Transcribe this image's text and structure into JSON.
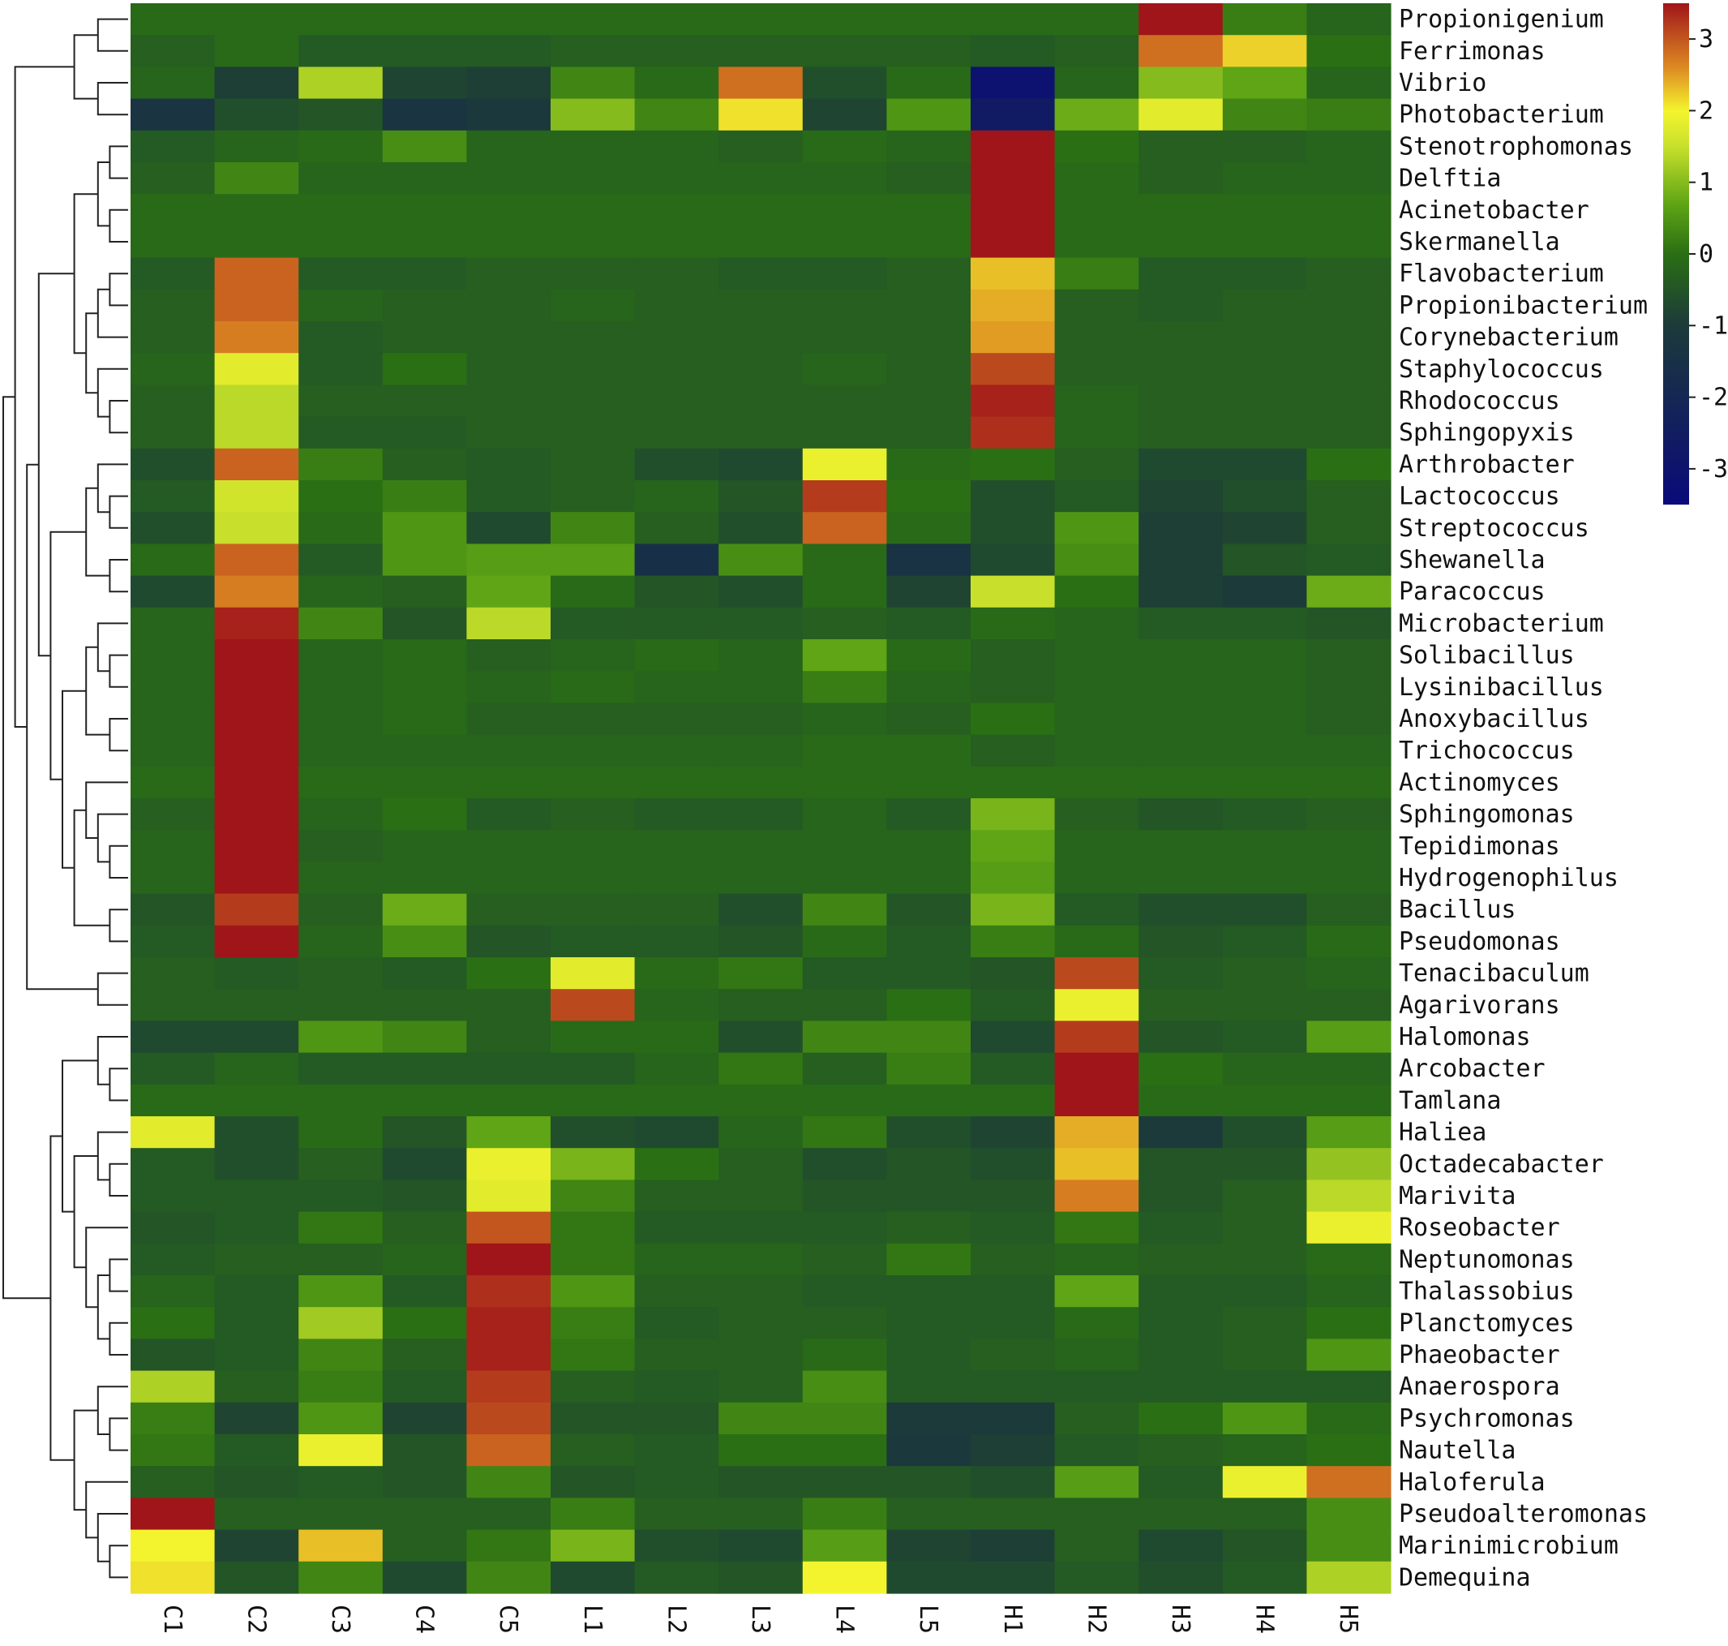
{
  "chart_data": {
    "type": "heatmap",
    "title": "",
    "xlabel": "",
    "ylabel": "",
    "columns": [
      "C1",
      "C2",
      "C3",
      "C4",
      "C5",
      "L1",
      "L2",
      "L3",
      "L4",
      "L5",
      "H1",
      "H2",
      "H3",
      "H4",
      "H5"
    ],
    "rows": [
      "Propionigenium",
      "Ferrimonas",
      "Vibrio",
      "Photobacterium",
      "Stenotrophomonas",
      "Delftia",
      "Acinetobacter",
      "Skermanella",
      "Flavobacterium",
      "Propionibacterium",
      "Corynebacterium",
      "Staphylococcus",
      "Rhodococcus",
      "Sphingopyxis",
      "Arthrobacter",
      "Lactococcus",
      "Streptococcus",
      "Shewanella",
      "Paracoccus",
      "Microbacterium",
      "Solibacillus",
      "Lysinibacillus",
      "Anoxybacillus",
      "Trichococcus",
      "Actinomyces",
      "Sphingomonas",
      "Tepidimonas",
      "Hydrogenophilus",
      "Bacillus",
      "Pseudomonas",
      "Tenacibaculum",
      "Agarivorans",
      "Halomonas",
      "Arcobacter",
      "Tamlana",
      "Haliea",
      "Octadecabacter",
      "Marivita",
      "Roseobacter",
      "Neptunomonas",
      "Thalassobius",
      "Planctomyces",
      "Phaeobacter",
      "Anaerospora",
      "Psychromonas",
      "Nautella",
      "Haloferula",
      "Pseudoalteromonas",
      "Marinimicrobium",
      "Demequina"
    ],
    "values": [
      [
        -0.1,
        -0.1,
        -0.1,
        -0.1,
        -0.1,
        -0.1,
        -0.1,
        -0.1,
        -0.1,
        -0.1,
        -0.1,
        -0.1,
        3.5,
        0.2,
        -0.2
      ],
      [
        -0.3,
        -0.1,
        -0.4,
        -0.4,
        -0.4,
        -0.3,
        -0.3,
        -0.3,
        -0.3,
        -0.3,
        -0.4,
        -0.3,
        2.8,
        2.2,
        0.0
      ],
      [
        -0.2,
        -0.9,
        1.3,
        -0.8,
        -0.9,
        0.3,
        -0.1,
        2.8,
        -0.6,
        -0.1,
        -3.1,
        -0.2,
        1.0,
        0.7,
        -0.2
      ],
      [
        -1.3,
        -0.6,
        -0.5,
        -1.3,
        -1.1,
        1.0,
        0.3,
        2.1,
        -0.8,
        0.5,
        -2.6,
        0.8,
        1.8,
        0.3,
        0.2
      ],
      [
        -0.4,
        -0.2,
        -0.1,
        0.4,
        -0.2,
        -0.2,
        -0.2,
        -0.3,
        -0.1,
        -0.2,
        3.5,
        0.0,
        -0.3,
        -0.3,
        -0.2
      ],
      [
        -0.3,
        0.3,
        -0.2,
        -0.2,
        -0.2,
        -0.2,
        -0.2,
        -0.2,
        -0.2,
        -0.3,
        3.5,
        -0.1,
        -0.3,
        -0.2,
        -0.2
      ],
      [
        -0.1,
        -0.1,
        -0.1,
        -0.1,
        -0.1,
        -0.1,
        -0.1,
        -0.1,
        -0.1,
        -0.1,
        3.5,
        -0.1,
        -0.1,
        -0.1,
        -0.1
      ],
      [
        -0.1,
        -0.1,
        -0.1,
        -0.1,
        -0.1,
        -0.1,
        -0.1,
        -0.1,
        -0.1,
        -0.1,
        3.5,
        -0.1,
        -0.1,
        -0.1,
        -0.1
      ],
      [
        -0.4,
        2.9,
        -0.4,
        -0.4,
        -0.3,
        -0.3,
        -0.3,
        -0.4,
        -0.4,
        -0.3,
        2.3,
        0.2,
        -0.4,
        -0.4,
        -0.3
      ],
      [
        -0.3,
        2.9,
        -0.2,
        -0.3,
        -0.3,
        -0.2,
        -0.3,
        -0.3,
        -0.3,
        -0.3,
        2.4,
        -0.3,
        -0.4,
        -0.3,
        -0.3
      ],
      [
        -0.3,
        2.7,
        -0.4,
        -0.3,
        -0.3,
        -0.3,
        -0.3,
        -0.3,
        -0.3,
        -0.3,
        2.5,
        -0.3,
        -0.3,
        -0.3,
        -0.3
      ],
      [
        -0.2,
        1.8,
        -0.4,
        0.0,
        -0.3,
        -0.3,
        -0.3,
        -0.3,
        -0.2,
        -0.3,
        3.1,
        -0.3,
        -0.3,
        -0.3,
        -0.3
      ],
      [
        -0.3,
        1.4,
        -0.3,
        -0.3,
        -0.3,
        -0.3,
        -0.3,
        -0.3,
        -0.3,
        -0.3,
        3.4,
        -0.2,
        -0.3,
        -0.3,
        -0.3
      ],
      [
        -0.3,
        1.4,
        -0.4,
        -0.4,
        -0.3,
        -0.3,
        -0.3,
        -0.3,
        -0.3,
        -0.3,
        3.3,
        -0.2,
        -0.3,
        -0.3,
        -0.3
      ],
      [
        -0.6,
        2.9,
        0.2,
        -0.3,
        -0.4,
        -0.3,
        -0.6,
        -0.7,
        1.9,
        -0.1,
        0.0,
        -0.3,
        -0.7,
        -0.7,
        0.0
      ],
      [
        -0.4,
        1.6,
        0.0,
        0.2,
        -0.4,
        -0.3,
        -0.2,
        -0.5,
        3.2,
        0.0,
        -0.6,
        -0.4,
        -0.8,
        -0.6,
        -0.3
      ],
      [
        -0.6,
        1.5,
        -0.1,
        0.5,
        -0.7,
        0.3,
        -0.3,
        -0.6,
        2.9,
        -0.1,
        -0.6,
        0.5,
        -0.9,
        -0.8,
        -0.3
      ],
      [
        -0.1,
        2.9,
        -0.4,
        0.5,
        0.6,
        0.6,
        -1.5,
        0.4,
        -0.1,
        -1.4,
        -0.7,
        0.4,
        -0.9,
        -0.5,
        -0.4
      ],
      [
        -0.7,
        2.7,
        -0.2,
        -0.3,
        0.7,
        -0.1,
        -0.5,
        -0.6,
        -0.1,
        -0.8,
        1.5,
        0.0,
        -0.9,
        -1.0,
        0.8
      ],
      [
        -0.2,
        3.4,
        0.3,
        -0.5,
        1.4,
        -0.4,
        -0.4,
        -0.4,
        -0.3,
        -0.4,
        -0.1,
        -0.2,
        -0.4,
        -0.4,
        -0.5
      ],
      [
        -0.2,
        3.5,
        -0.2,
        -0.1,
        -0.3,
        -0.2,
        -0.1,
        -0.2,
        0.7,
        -0.1,
        -0.3,
        -0.2,
        -0.2,
        -0.2,
        -0.3
      ],
      [
        -0.2,
        3.5,
        -0.2,
        -0.1,
        -0.2,
        -0.1,
        -0.2,
        -0.2,
        0.2,
        -0.2,
        -0.3,
        -0.2,
        -0.2,
        -0.2,
        -0.3
      ],
      [
        -0.2,
        3.5,
        -0.2,
        -0.1,
        -0.3,
        -0.3,
        -0.3,
        -0.3,
        -0.2,
        -0.3,
        0.0,
        -0.2,
        -0.2,
        -0.2,
        -0.3
      ],
      [
        -0.2,
        3.5,
        -0.2,
        -0.2,
        -0.2,
        -0.2,
        -0.2,
        -0.2,
        -0.1,
        -0.1,
        -0.3,
        -0.2,
        -0.2,
        -0.2,
        -0.2
      ],
      [
        -0.1,
        3.5,
        -0.1,
        -0.1,
        -0.1,
        -0.1,
        -0.1,
        -0.1,
        -0.1,
        -0.1,
        -0.1,
        -0.1,
        -0.1,
        -0.1,
        -0.1
      ],
      [
        -0.3,
        3.5,
        -0.2,
        0.0,
        -0.4,
        -0.3,
        -0.4,
        -0.4,
        -0.2,
        -0.4,
        0.9,
        -0.3,
        -0.5,
        -0.4,
        -0.3
      ],
      [
        -0.2,
        3.5,
        -0.3,
        -0.2,
        -0.2,
        -0.2,
        -0.2,
        -0.2,
        -0.2,
        -0.2,
        0.7,
        -0.2,
        -0.2,
        -0.2,
        -0.2
      ],
      [
        -0.2,
        3.5,
        -0.2,
        -0.2,
        -0.2,
        -0.2,
        -0.2,
        -0.2,
        -0.2,
        -0.2,
        0.6,
        -0.2,
        -0.2,
        -0.2,
        -0.2
      ],
      [
        -0.5,
        3.2,
        -0.3,
        0.8,
        -0.3,
        -0.3,
        -0.3,
        -0.6,
        0.3,
        -0.5,
        0.9,
        -0.4,
        -0.6,
        -0.6,
        -0.3
      ],
      [
        -0.4,
        3.5,
        -0.2,
        0.4,
        -0.5,
        -0.4,
        -0.4,
        -0.5,
        -0.1,
        -0.4,
        0.2,
        -0.1,
        -0.5,
        -0.4,
        -0.1
      ],
      [
        -0.3,
        -0.4,
        -0.3,
        -0.4,
        0.0,
        1.8,
        -0.1,
        0.1,
        -0.4,
        -0.4,
        -0.5,
        3.1,
        -0.4,
        -0.3,
        -0.2
      ],
      [
        -0.3,
        -0.3,
        -0.3,
        -0.3,
        -0.3,
        3.1,
        -0.2,
        -0.3,
        -0.3,
        0.0,
        -0.4,
        1.9,
        -0.3,
        -0.3,
        -0.3
      ],
      [
        -0.7,
        -0.7,
        0.5,
        0.3,
        -0.3,
        -0.1,
        -0.1,
        -0.6,
        0.3,
        0.3,
        -0.7,
        3.2,
        -0.5,
        -0.4,
        0.6
      ],
      [
        -0.4,
        -0.2,
        -0.4,
        -0.4,
        -0.4,
        -0.4,
        -0.2,
        0.1,
        -0.3,
        0.2,
        -0.4,
        3.5,
        0.0,
        -0.2,
        -0.2
      ],
      [
        -0.1,
        -0.1,
        -0.1,
        -0.1,
        -0.1,
        -0.1,
        -0.1,
        -0.1,
        -0.1,
        -0.1,
        -0.1,
        3.5,
        -0.1,
        -0.1,
        -0.1
      ],
      [
        1.8,
        -0.6,
        -0.1,
        -0.5,
        0.7,
        -0.6,
        -0.7,
        -0.2,
        0.1,
        -0.6,
        -0.8,
        2.4,
        -1.0,
        -0.6,
        0.6
      ],
      [
        -0.4,
        -0.6,
        -0.3,
        -0.7,
        1.9,
        0.9,
        0.0,
        -0.3,
        -0.6,
        -0.5,
        -0.6,
        2.3,
        -0.5,
        -0.5,
        1.1
      ],
      [
        -0.4,
        -0.4,
        -0.4,
        -0.5,
        1.8,
        0.3,
        -0.3,
        -0.3,
        -0.5,
        -0.5,
        -0.5,
        2.7,
        -0.5,
        -0.3,
        1.4
      ],
      [
        -0.5,
        -0.4,
        0.1,
        -0.3,
        3.0,
        0.1,
        -0.4,
        -0.4,
        -0.4,
        -0.3,
        -0.4,
        0.1,
        -0.4,
        -0.3,
        1.9
      ],
      [
        -0.4,
        -0.3,
        -0.3,
        -0.2,
        3.5,
        0.1,
        -0.2,
        -0.2,
        -0.3,
        0.1,
        -0.3,
        -0.2,
        -0.3,
        -0.3,
        -0.1
      ],
      [
        -0.2,
        -0.4,
        0.5,
        -0.4,
        3.3,
        0.5,
        -0.3,
        -0.3,
        -0.4,
        -0.4,
        -0.4,
        0.7,
        -0.4,
        -0.4,
        -0.2
      ],
      [
        0.0,
        -0.4,
        1.2,
        0.0,
        3.4,
        0.2,
        -0.4,
        -0.3,
        -0.3,
        -0.4,
        -0.4,
        -0.1,
        -0.4,
        -0.3,
        0.0
      ],
      [
        -0.5,
        -0.4,
        0.3,
        -0.3,
        3.4,
        0.1,
        -0.3,
        -0.3,
        -0.1,
        -0.4,
        -0.3,
        -0.2,
        -0.4,
        -0.3,
        0.5
      ],
      [
        1.3,
        -0.3,
        0.2,
        -0.4,
        3.2,
        -0.3,
        -0.4,
        -0.3,
        0.4,
        -0.4,
        -0.4,
        -0.4,
        -0.4,
        -0.4,
        -0.4
      ],
      [
        0.2,
        -0.8,
        0.5,
        -0.8,
        3.1,
        -0.5,
        -0.5,
        0.3,
        0.3,
        -1.0,
        -1.0,
        -0.3,
        0.0,
        0.5,
        -0.1
      ],
      [
        0.1,
        -0.4,
        1.9,
        -0.5,
        2.9,
        -0.3,
        -0.4,
        0.0,
        0.0,
        -1.1,
        -0.9,
        -0.4,
        -0.3,
        -0.2,
        0.0
      ],
      [
        -0.3,
        -0.5,
        -0.4,
        -0.5,
        0.3,
        -0.5,
        -0.4,
        -0.5,
        -0.5,
        -0.5,
        -0.6,
        0.6,
        -0.4,
        1.9,
        2.8
      ],
      [
        3.5,
        -0.3,
        -0.3,
        -0.3,
        -0.3,
        0.2,
        -0.3,
        -0.3,
        0.2,
        -0.3,
        -0.3,
        -0.3,
        -0.3,
        -0.3,
        0.4
      ],
      [
        2.0,
        -0.8,
        2.3,
        -0.3,
        0.1,
        0.9,
        -0.6,
        -0.7,
        0.6,
        -0.8,
        -0.9,
        -0.3,
        -0.7,
        -0.5,
        0.4
      ],
      [
        2.1,
        -0.5,
        0.3,
        -0.7,
        0.3,
        -0.7,
        -0.4,
        -0.5,
        2.0,
        -0.7,
        -0.7,
        -0.4,
        -0.6,
        -0.4,
        1.3
      ]
    ],
    "color_scale": {
      "min": -3.5,
      "max": 3.5,
      "ticks": [
        3,
        2,
        1,
        0,
        -1,
        -2,
        -3
      ],
      "tick_labels": [
        "3",
        "2",
        "1",
        "0",
        "-1",
        "-2",
        "-3"
      ],
      "stops": [
        {
          "value": -3.5,
          "color": "#0a0a7a"
        },
        {
          "value": -1.0,
          "color": "#1c3a3a"
        },
        {
          "value": 0.0,
          "color": "#2a6f14"
        },
        {
          "value": 0.7,
          "color": "#5fa515"
        },
        {
          "value": 1.5,
          "color": "#c8e02c"
        },
        {
          "value": 2.0,
          "color": "#f4f42e"
        },
        {
          "value": 2.6,
          "color": "#dd8a22"
        },
        {
          "value": 3.5,
          "color": "#a0151a"
        }
      ]
    },
    "legend_position": "top-right",
    "dendrogram": "rows, left side",
    "grid": false
  }
}
